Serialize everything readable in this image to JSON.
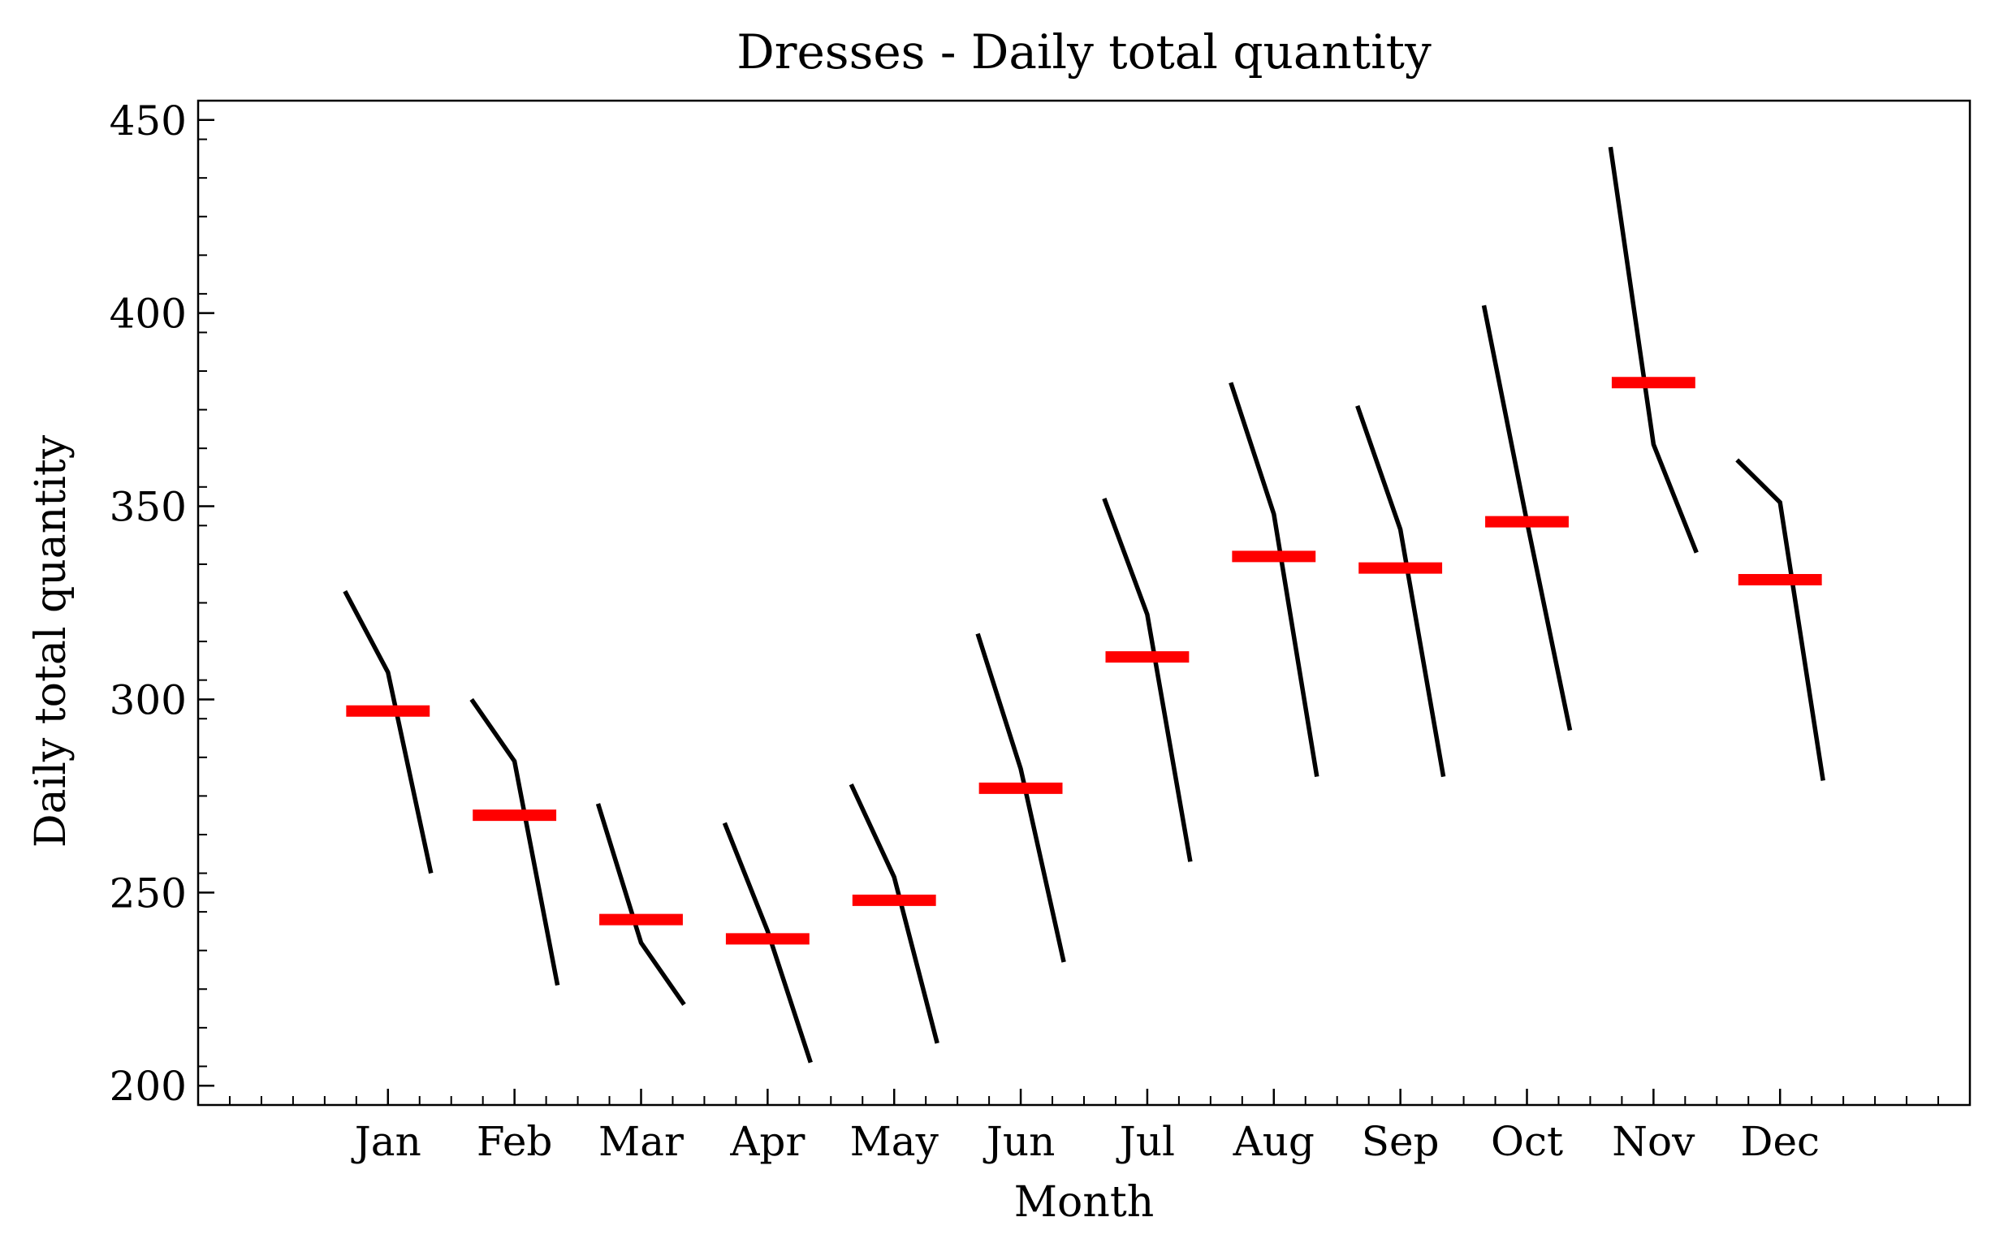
{
  "chart_data": {
    "type": "line",
    "title": "Dresses - Daily total quantity",
    "xlabel": "Month",
    "ylabel": "Daily total quantity",
    "ylim": [
      195,
      455
    ],
    "xlim": [
      -1.5,
      12.5
    ],
    "yticks": [
      200,
      250,
      300,
      350,
      400,
      450
    ],
    "y_minor_step": 10,
    "x_minor_step": 0.25,
    "categories": [
      "Jan",
      "Feb",
      "Mar",
      "Apr",
      "May",
      "Jun",
      "Jul",
      "Aug",
      "Sep",
      "Oct",
      "Nov",
      "Dec"
    ],
    "series": [
      {
        "values": [
          [
            328,
            307,
            255
          ],
          [
            300,
            284,
            226
          ],
          [
            273,
            237,
            221
          ],
          [
            268,
            240,
            206
          ],
          [
            278,
            254,
            211
          ],
          [
            317,
            282,
            232
          ],
          [
            352,
            322,
            258
          ],
          [
            382,
            348,
            280
          ],
          [
            376,
            344,
            280
          ],
          [
            402,
            346,
            292
          ],
          [
            443,
            366,
            338
          ],
          [
            362,
            351,
            279
          ]
        ]
      }
    ],
    "means": [
      297,
      270,
      243,
      238,
      248,
      277,
      311,
      337,
      334,
      346,
      382,
      331
    ],
    "grid": false,
    "legend": "none",
    "colors": {
      "series": "#000000",
      "mean": "#ff0000",
      "axes": "#000000"
    }
  }
}
